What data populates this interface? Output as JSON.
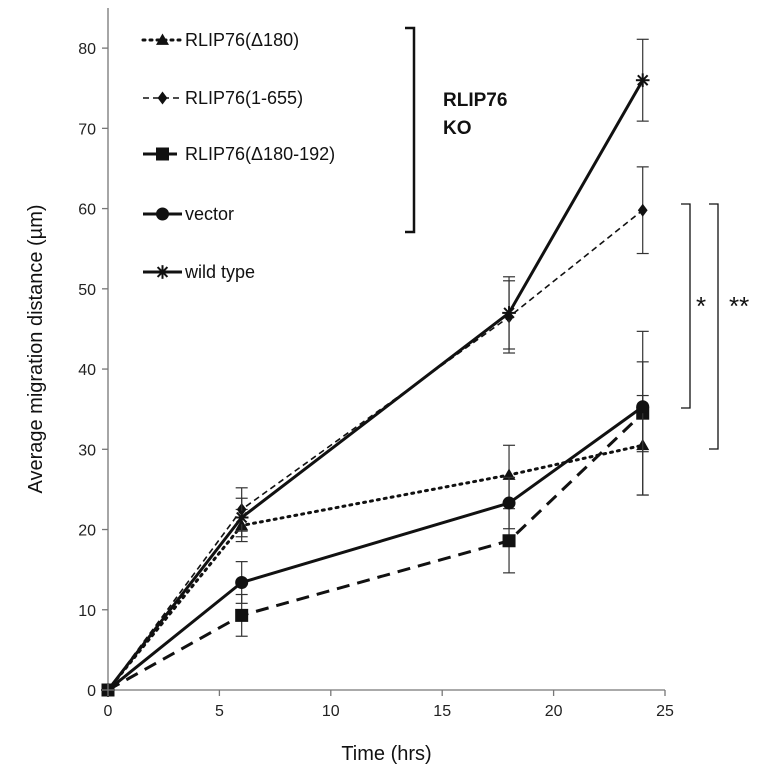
{
  "chart_data": {
    "type": "line",
    "xlabel": "Time  (hrs)",
    "ylabel": "Average migration distance (µm)",
    "xlim": [
      0,
      25
    ],
    "ylim": [
      0,
      85
    ],
    "xticks": [
      0,
      5,
      10,
      15,
      20,
      25
    ],
    "yticks": [
      0,
      10,
      20,
      30,
      40,
      50,
      60,
      70,
      80
    ],
    "grid": false,
    "legend_position": "top-left",
    "series": [
      {
        "name": "RLIP76(Δ180)",
        "marker": "triangle",
        "dash": "dotted",
        "x": [
          0,
          6,
          18,
          24
        ],
        "y": [
          0,
          20.5,
          26.8,
          30.5
        ],
        "err": [
          0,
          2.0,
          3.7,
          6.2
        ]
      },
      {
        "name": "RLIP76(1-655)",
        "marker": "diamond",
        "dash": "dashed-thin",
        "x": [
          0,
          6,
          18,
          24
        ],
        "y": [
          0,
          22.5,
          46.5,
          59.8
        ],
        "err": [
          0,
          2.7,
          4.5,
          5.4
        ]
      },
      {
        "name": "RLIP76(Δ180-192)",
        "marker": "square",
        "dash": "dashed-thick",
        "x": [
          0,
          6,
          18,
          24
        ],
        "y": [
          0,
          9.3,
          18.6,
          34.5
        ],
        "err": [
          0,
          2.6,
          4.0,
          10.2
        ]
      },
      {
        "name": "vector",
        "marker": "circle",
        "dash": "solid",
        "x": [
          0,
          6,
          18,
          24
        ],
        "y": [
          0,
          13.4,
          23.3,
          35.3
        ],
        "err": [
          0,
          2.6,
          3.2,
          5.6
        ]
      },
      {
        "name": "wild type",
        "marker": "asterisk",
        "dash": "solid",
        "x": [
          0,
          6,
          18,
          24
        ],
        "y": [
          0,
          21.5,
          47.0,
          76.0
        ],
        "err": [
          0,
          2.4,
          4.5,
          5.1
        ]
      }
    ],
    "annotations": {
      "group_label_line1": "RLIP76",
      "group_label_line2": "KO",
      "sig_single": "*",
      "sig_double": "**"
    }
  }
}
